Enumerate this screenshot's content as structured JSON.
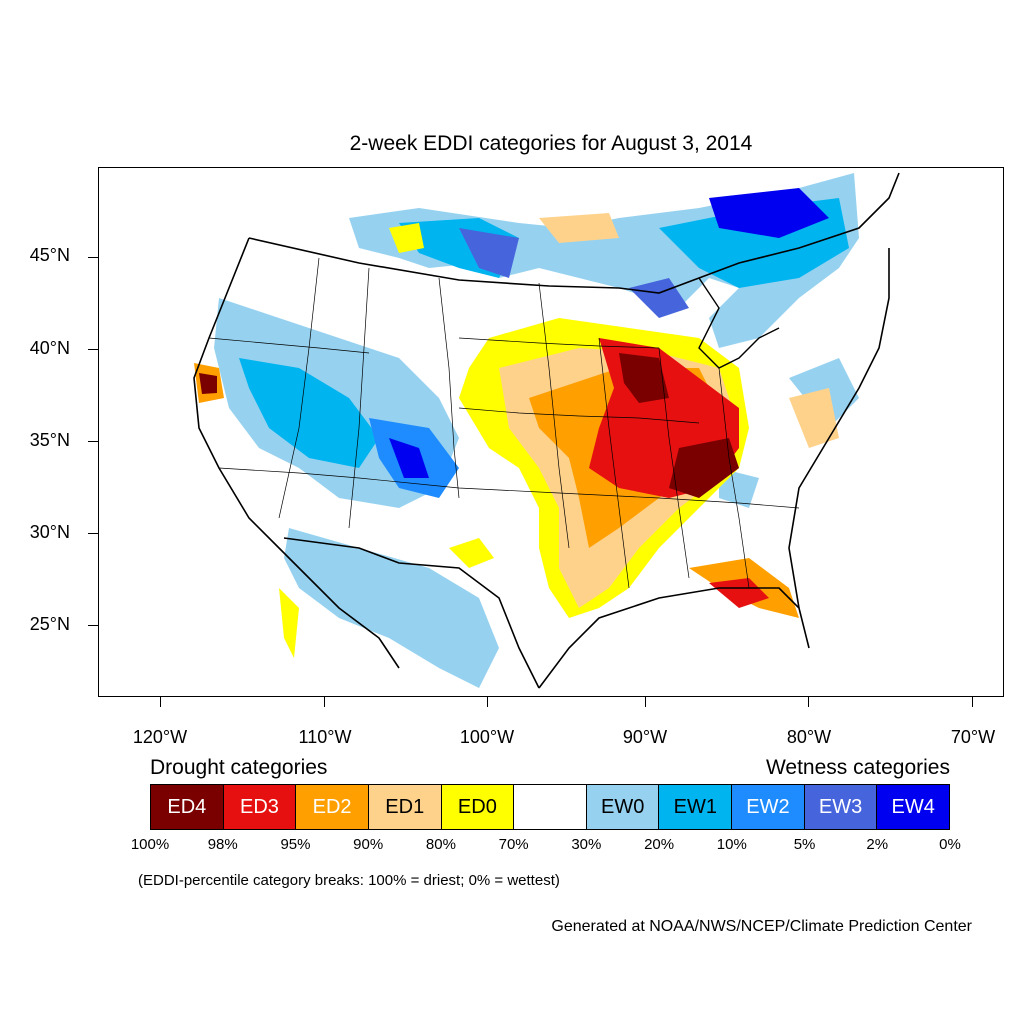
{
  "title": "2-week EDDI categories for August 3, 2014",
  "lat_labels": [
    "45°N",
    "40°N",
    "35°N",
    "30°N",
    "25°N"
  ],
  "lon_labels": [
    "120°W",
    "110°W",
    "100°W",
    "90°W",
    "80°W",
    "70°W"
  ],
  "legend": {
    "drought_heading": "Drought categories",
    "wetness_heading": "Wetness categories",
    "categories": [
      {
        "label": "ED4",
        "color": "#7a0000",
        "text_color": "#ffffff"
      },
      {
        "label": "ED3",
        "color": "#e61010",
        "text_color": "#ffffff"
      },
      {
        "label": "ED2",
        "color": "#ffa000",
        "text_color": "#ffffff"
      },
      {
        "label": "ED1",
        "color": "#ffd28c",
        "text_color": "#000000"
      },
      {
        "label": "ED0",
        "color": "#ffff00",
        "text_color": "#000000"
      },
      {
        "label": "",
        "color": "#ffffff",
        "text_color": "#000000"
      },
      {
        "label": "EW0",
        "color": "#96d2f0",
        "text_color": "#000000"
      },
      {
        "label": "EW1",
        "color": "#00b4f0",
        "text_color": "#000000"
      },
      {
        "label": "EW2",
        "color": "#1e8cff",
        "text_color": "#ffffff"
      },
      {
        "label": "EW3",
        "color": "#4664dc",
        "text_color": "#ffffff"
      },
      {
        "label": "EW4",
        "color": "#0000f0",
        "text_color": "#ffffff"
      }
    ],
    "breaks": [
      "100%",
      "98%",
      "95%",
      "90%",
      "80%",
      "70%",
      "30%",
      "20%",
      "10%",
      "5%",
      "2%",
      "0%"
    ]
  },
  "note": "(EDDI-percentile category breaks: 100% = driest; 0% = wettest)",
  "credit": "Generated at NOAA/NWS/NCEP/Climate Prediction Center"
}
